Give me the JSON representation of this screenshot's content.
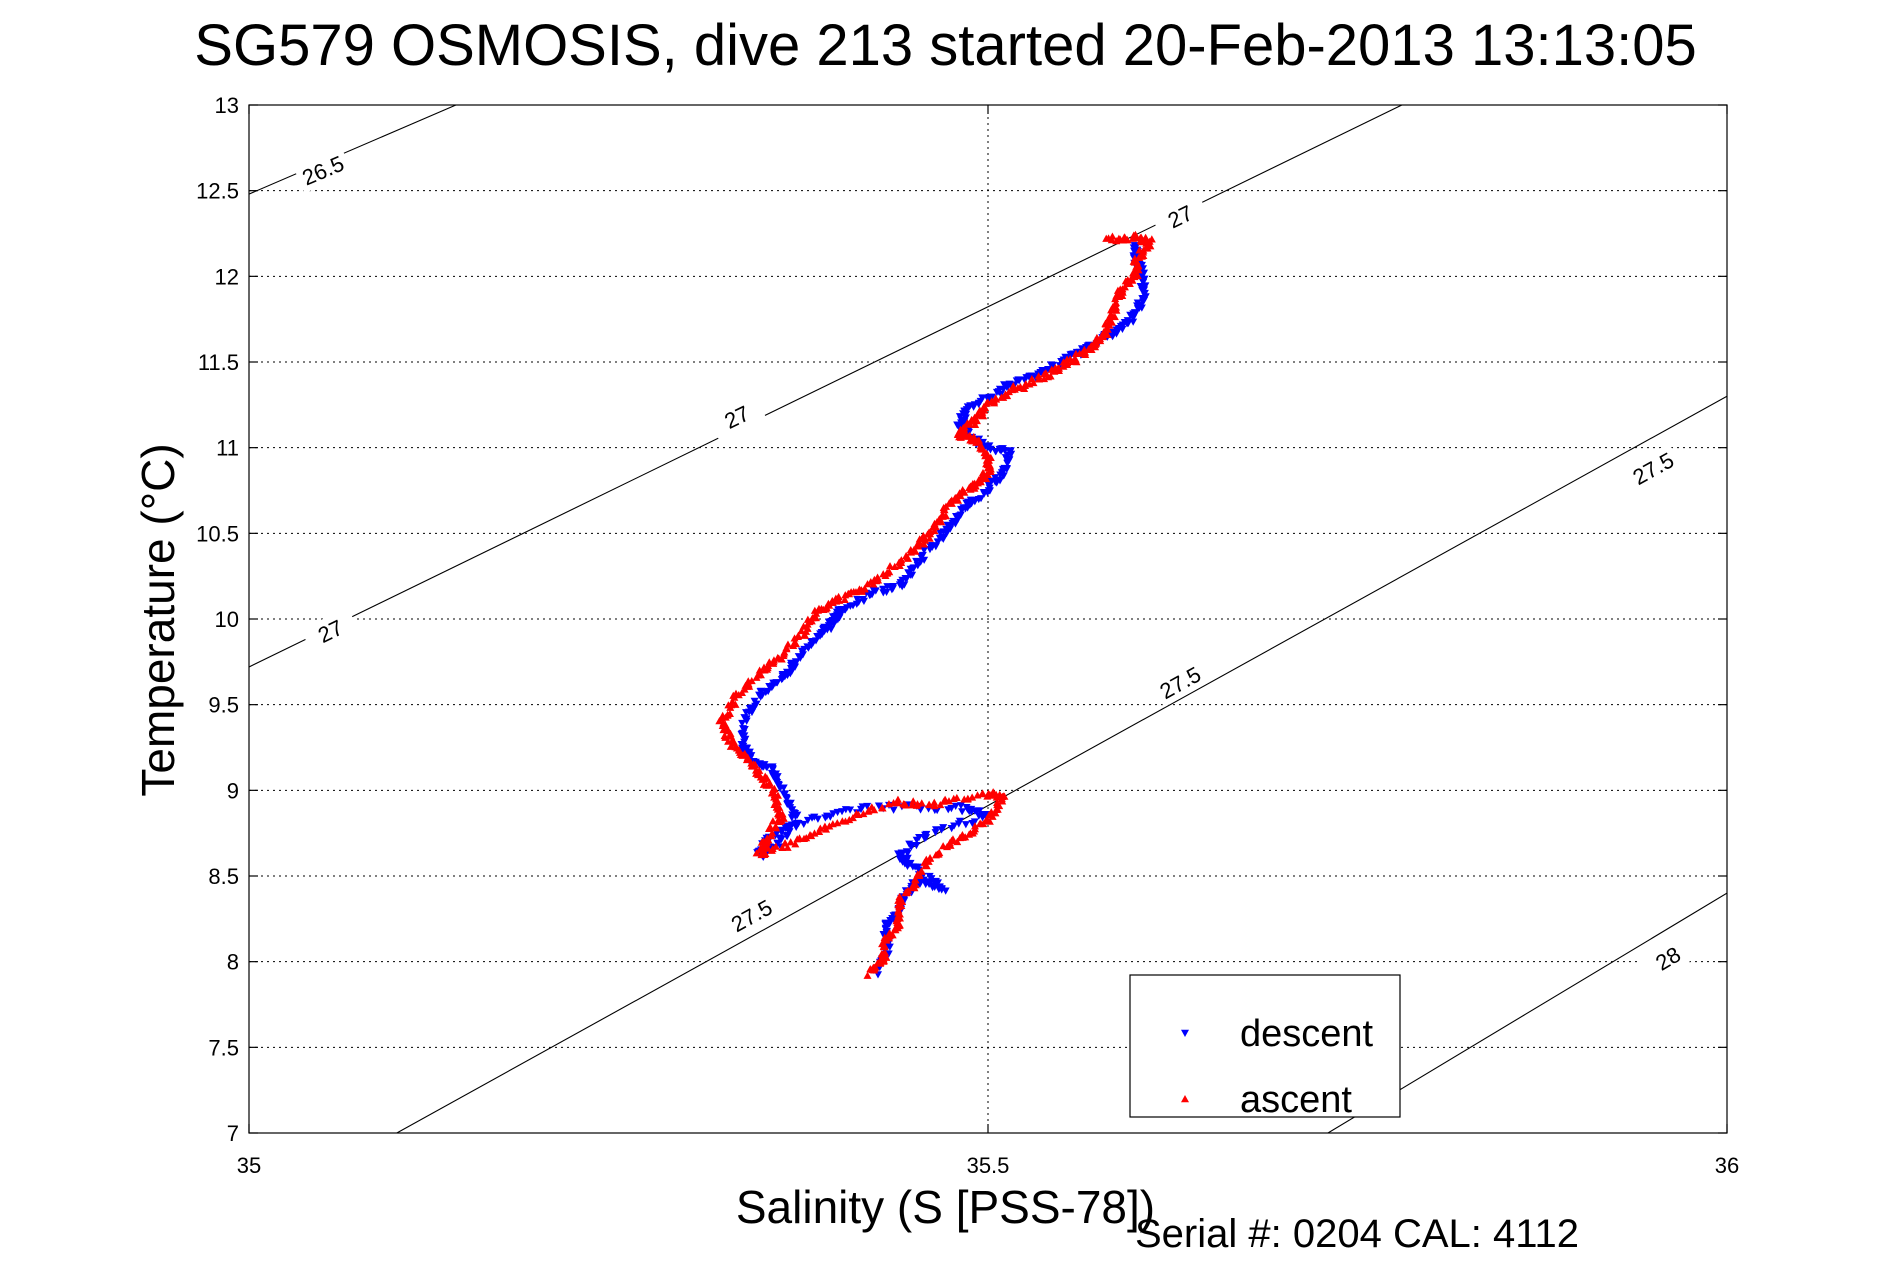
{
  "title": "SG579 OSMOSIS, dive 213 started 20-Feb-2013 13:13:05",
  "footer": {
    "serial": "Serial #: 0204  CAL: 4112"
  },
  "colors": {
    "descent": "#0000ff",
    "ascent": "#ff0000",
    "contour": "#000000",
    "grid": "#000000"
  },
  "chart_data": {
    "type": "scatter",
    "title": "SG579 OSMOSIS, dive 213 started 20-Feb-2013 13:13:05",
    "xlabel": "Salinity (S [PSS-78])",
    "ylabel": "Temperature (°C)",
    "xlim": [
      35,
      36
    ],
    "ylim": [
      7,
      13
    ],
    "x_ticks": [
      "35",
      "35.5",
      "36"
    ],
    "y_ticks": [
      "7",
      "7.5",
      "8",
      "8.5",
      "9",
      "9.5",
      "10",
      "10.5",
      "11",
      "11.5",
      "12",
      "12.5",
      "13"
    ],
    "grid": true,
    "legend_position": "bottom-right",
    "density_contours": [
      {
        "label": "26.5",
        "points": [
          [
            35.0,
            12.48
          ],
          [
            35.14,
            13.0
          ]
        ],
        "labels_at": [
          [
            35.05,
            12.62
          ]
        ]
      },
      {
        "label": "27",
        "points": [
          [
            35.0,
            9.72
          ],
          [
            35.78,
            13.0
          ]
        ],
        "labels_at": [
          [
            35.055,
            9.93
          ],
          [
            35.33,
            11.18
          ],
          [
            35.63,
            12.35
          ]
        ]
      },
      {
        "label": "27.5",
        "points": [
          [
            35.1,
            7.0
          ],
          [
            36.0,
            11.3
          ]
        ],
        "labels_at": [
          [
            35.34,
            8.27
          ],
          [
            35.63,
            9.63
          ],
          [
            35.95,
            10.88
          ]
        ]
      },
      {
        "label": "28",
        "points": [
          [
            35.73,
            7.0
          ],
          [
            36.0,
            8.4
          ]
        ],
        "labels_at": [
          [
            35.96,
            8.02
          ]
        ]
      }
    ],
    "series": [
      {
        "name": "descent",
        "marker": "triangle-down",
        "path": [
          [
            35.424,
            7.94
          ],
          [
            35.432,
            8.05
          ],
          [
            35.43,
            8.2
          ],
          [
            35.44,
            8.3
          ],
          [
            35.445,
            8.4
          ],
          [
            35.455,
            8.48
          ],
          [
            35.47,
            8.42
          ],
          [
            35.45,
            8.55
          ],
          [
            35.44,
            8.62
          ],
          [
            35.46,
            8.75
          ],
          [
            35.5,
            8.85
          ],
          [
            35.48,
            8.9
          ],
          [
            35.42,
            8.9
          ],
          [
            35.38,
            8.83
          ],
          [
            35.35,
            8.72
          ],
          [
            35.345,
            8.62
          ],
          [
            35.36,
            8.7
          ],
          [
            35.37,
            8.85
          ],
          [
            35.36,
            9.0
          ],
          [
            35.355,
            9.12
          ],
          [
            35.34,
            9.18
          ],
          [
            35.335,
            9.25
          ],
          [
            35.335,
            9.4
          ],
          [
            35.345,
            9.55
          ],
          [
            35.36,
            9.65
          ],
          [
            35.37,
            9.75
          ],
          [
            35.385,
            9.9
          ],
          [
            35.395,
            9.98
          ],
          [
            35.4,
            10.05
          ],
          [
            35.42,
            10.15
          ],
          [
            35.44,
            10.2
          ],
          [
            35.45,
            10.3
          ],
          [
            35.465,
            10.45
          ],
          [
            35.475,
            10.55
          ],
          [
            35.485,
            10.65
          ],
          [
            35.5,
            10.75
          ],
          [
            35.51,
            10.85
          ],
          [
            35.515,
            10.98
          ],
          [
            35.5,
            11.0
          ],
          [
            35.49,
            11.05
          ],
          [
            35.48,
            11.12
          ],
          [
            35.485,
            11.22
          ],
          [
            35.5,
            11.3
          ],
          [
            35.52,
            11.38
          ],
          [
            35.54,
            11.45
          ],
          [
            35.56,
            11.55
          ],
          [
            35.575,
            11.62
          ],
          [
            35.59,
            11.7
          ],
          [
            35.6,
            11.78
          ],
          [
            35.605,
            11.88
          ],
          [
            35.605,
            12.0
          ],
          [
            35.6,
            12.1
          ],
          [
            35.6,
            12.18
          ]
        ],
        "values_note": ""
      },
      {
        "name": "ascent",
        "marker": "triangle-up",
        "path": [
          [
            35.42,
            7.93
          ],
          [
            35.43,
            8.02
          ],
          [
            35.43,
            8.12
          ],
          [
            35.44,
            8.22
          ],
          [
            35.44,
            8.35
          ],
          [
            35.45,
            8.45
          ],
          [
            35.46,
            8.6
          ],
          [
            35.48,
            8.72
          ],
          [
            35.5,
            8.82
          ],
          [
            35.51,
            8.95
          ],
          [
            35.5,
            8.98
          ],
          [
            35.465,
            8.92
          ],
          [
            35.435,
            8.93
          ],
          [
            35.4,
            8.82
          ],
          [
            35.37,
            8.7
          ],
          [
            35.345,
            8.63
          ],
          [
            35.35,
            8.72
          ],
          [
            35.36,
            8.85
          ],
          [
            35.355,
            8.98
          ],
          [
            35.345,
            9.1
          ],
          [
            35.335,
            9.2
          ],
          [
            35.325,
            9.3
          ],
          [
            35.32,
            9.4
          ],
          [
            35.33,
            9.55
          ],
          [
            35.345,
            9.68
          ],
          [
            35.36,
            9.78
          ],
          [
            35.375,
            9.92
          ],
          [
            35.385,
            10.05
          ],
          [
            35.4,
            10.12
          ],
          [
            35.42,
            10.2
          ],
          [
            35.44,
            10.32
          ],
          [
            35.455,
            10.45
          ],
          [
            35.465,
            10.55
          ],
          [
            35.475,
            10.68
          ],
          [
            35.49,
            10.78
          ],
          [
            35.5,
            10.85
          ],
          [
            35.5,
            10.95
          ],
          [
            35.49,
            11.05
          ],
          [
            35.48,
            11.08
          ],
          [
            35.49,
            11.15
          ],
          [
            35.5,
            11.25
          ],
          [
            35.52,
            11.35
          ],
          [
            35.54,
            11.42
          ],
          [
            35.555,
            11.5
          ],
          [
            35.57,
            11.58
          ],
          [
            35.58,
            11.68
          ],
          [
            35.585,
            11.8
          ],
          [
            35.59,
            11.92
          ],
          [
            35.6,
            12.0
          ],
          [
            35.6,
            12.1
          ],
          [
            35.61,
            12.2
          ],
          [
            35.6,
            12.23
          ],
          [
            35.58,
            12.22
          ]
        ],
        "values_note": ""
      }
    ]
  }
}
